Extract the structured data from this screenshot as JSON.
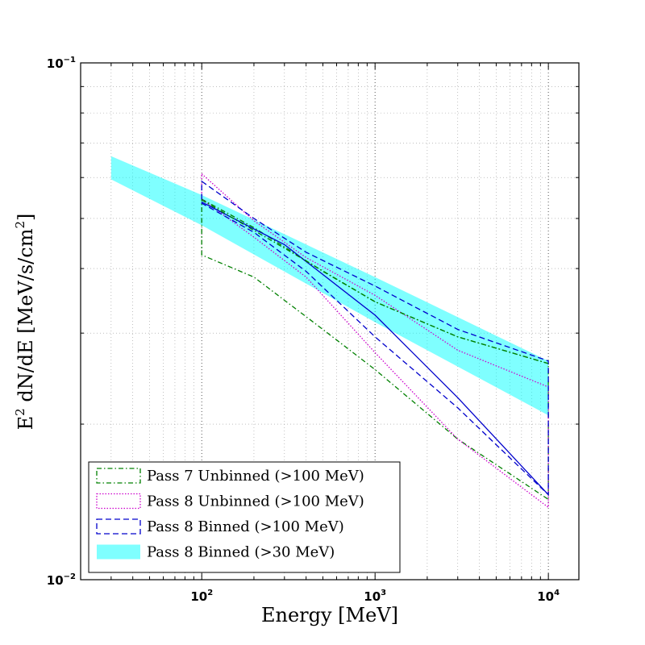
{
  "chart_data": {
    "type": "line",
    "title": "",
    "xlabel": "Energy [MeV]",
    "ylabel": {
      "prefix": "E",
      "sup1": "2",
      "middle": " dN/dE [MeV/s/cm",
      "sup2": "2",
      "suffix": "]"
    },
    "x_scale": "log",
    "y_scale": "log",
    "xlim": [
      20,
      15000
    ],
    "ylim": [
      0.01,
      0.1
    ],
    "grid": true,
    "legend_position": "lower-left",
    "x_ticks": [
      {
        "value": 100,
        "base": "10",
        "exp": "2"
      },
      {
        "value": 1000,
        "base": "10",
        "exp": "3"
      },
      {
        "value": 10000,
        "base": "10",
        "exp": "4"
      }
    ],
    "y_ticks": [
      {
        "value": 0.1,
        "base": "10",
        "exp": "−1"
      },
      {
        "value": 0.01,
        "base": "10",
        "exp": "−2"
      }
    ],
    "series": [
      {
        "name": "Pass 8 Binned  (>30 MeV)",
        "kind": "band",
        "color": "#00ffff",
        "opacity": 0.5,
        "x": [
          30,
          100,
          1000,
          10000
        ],
        "upper": [
          0.066,
          0.0555,
          0.0385,
          0.0265
        ],
        "lower": [
          0.0595,
          0.0485,
          0.0315,
          0.0208
        ]
      },
      {
        "name": "Pass 7 Unbinned (>100 MeV)",
        "kind": "bowtie",
        "color": "#008000",
        "dash": "6,3,1.5,3",
        "x": [
          100,
          200,
          500,
          1000,
          3000,
          10000
        ],
        "upper": [
          0.0545,
          0.048,
          0.0395,
          0.0345,
          0.0295,
          0.0262
        ],
        "lower": [
          0.0425,
          0.0385,
          0.0305,
          0.0255,
          0.0187,
          0.0143
        ]
      },
      {
        "name": "Pass 8 Unbinned (>100 MeV)",
        "kind": "bowtie",
        "color": "#cc00cc",
        "dash": "1.5,2",
        "x": [
          100,
          200,
          400,
          1000,
          3000,
          10000
        ],
        "upper": [
          0.061,
          0.0495,
          0.042,
          0.0355,
          0.0278,
          0.0236
        ],
        "lower": [
          0.0545,
          0.046,
          0.0385,
          0.0275,
          0.0187,
          0.0138
        ]
      },
      {
        "name": "Pass 8 Binned  (>100 MeV)",
        "kind": "bowtie",
        "color": "#0000cc",
        "dash": "7,4",
        "x": [
          100,
          200,
          400,
          1000,
          3000,
          10000
        ],
        "upper": [
          0.059,
          0.05,
          0.043,
          0.037,
          0.0305,
          0.0265
        ],
        "lower": [
          0.0535,
          0.047,
          0.0395,
          0.0295,
          0.0215,
          0.0146
        ]
      }
    ],
    "center_lines": [
      {
        "name": "Pass 8 Binned  (>100 MeV) best fit",
        "color": "#0000cc",
        "x": [
          100,
          300,
          1000,
          3000,
          10000
        ],
        "y": [
          0.0538,
          0.0445,
          0.0325,
          0.0225,
          0.0146
        ]
      },
      {
        "name": "Pass 7 Unbinned (>100 MeV) best fit",
        "color": "#008000",
        "dash": "6,3,1.5,3",
        "x": [
          100,
          300,
          1000,
          3000,
          10000
        ],
        "y": [
          0.0543,
          0.0438,
          0.0345,
          0.0295,
          0.0262
        ]
      }
    ],
    "legend_order": [
      1,
      2,
      3,
      0
    ]
  }
}
